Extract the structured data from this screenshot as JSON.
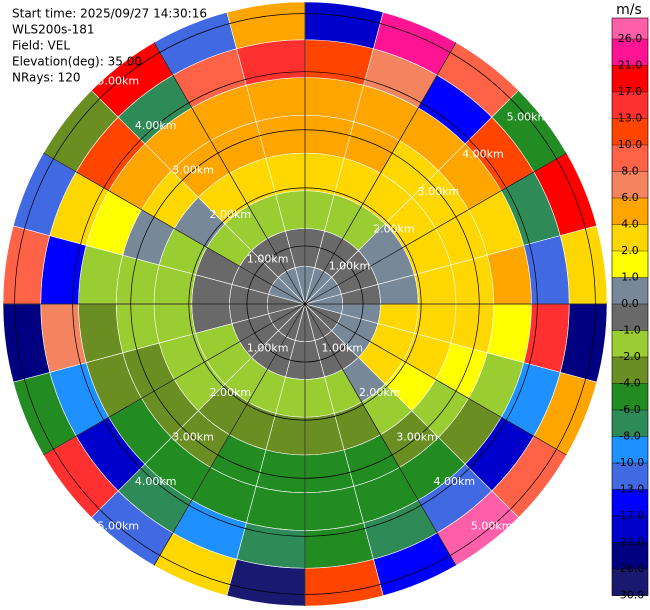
{
  "chart_data": {
    "type": "ppi",
    "info": [
      "Start time: 2025/09/27 14:30:16",
      "WLS200s-181",
      "Field: VEL",
      "Elevation(deg): 35.00",
      "NRays: 120"
    ],
    "rlim": [
      0,
      5.2
    ],
    "range_rings": [
      {
        "value": 1,
        "label": "1.00km"
      },
      {
        "value": 2,
        "label": "2.00km"
      },
      {
        "value": 3,
        "label": "3.00km"
      },
      {
        "value": 4,
        "label": "4.00km"
      },
      {
        "value": 5,
        "label": "5.00km"
      }
    ],
    "field": [
      [
        0.5,
        -0.5,
        -1.5,
        3,
        5,
        5,
        12,
        -20
      ],
      [
        0.5,
        -0.5,
        -1.5,
        3,
        5,
        5,
        7,
        24
      ],
      [
        0.5,
        -0.5,
        -1.5,
        3,
        3,
        5,
        -15,
        9
      ],
      [
        0.5,
        -0.5,
        0.5,
        3,
        3,
        5,
        11,
        -5
      ],
      [
        0.5,
        -0.5,
        0.5,
        3,
        3,
        3,
        -7,
        18
      ],
      [
        0.5,
        -0.5,
        0.5,
        3,
        3,
        5,
        -11,
        3
      ],
      [
        0.5,
        0.5,
        3,
        3,
        3,
        1.5,
        14,
        -23
      ],
      [
        -0.5,
        0.5,
        3,
        3,
        1.5,
        -1.5,
        -9,
        5
      ],
      [
        -0.5,
        0.5,
        3,
        1.5,
        -1.5,
        -3,
        -18,
        9
      ],
      [
        -0.5,
        -0.5,
        0.5,
        -1.5,
        -3,
        -5,
        -12,
        27
      ],
      [
        -0.5,
        -0.5,
        -1.5,
        -3,
        -5,
        -5,
        -7,
        -15
      ],
      [
        -0.5,
        -0.5,
        -1.5,
        -3,
        -5,
        -5,
        -5,
        11
      ],
      [
        -0.5,
        -0.5,
        -1.5,
        -3,
        -5,
        -5,
        -7,
        -28
      ],
      [
        -0.5,
        -0.5,
        -1.5,
        -3,
        -5,
        -5,
        -9,
        3
      ],
      [
        -0.5,
        -0.5,
        -1.5,
        -3,
        -3,
        -5,
        -7,
        -11
      ],
      [
        -0.5,
        -0.5,
        -1.5,
        -1.5,
        -3,
        -5,
        -19,
        15
      ],
      [
        -0.5,
        -0.5,
        -1.5,
        -1.5,
        -3,
        -3,
        -9,
        -5
      ],
      [
        -0.5,
        -0.5,
        -0.5,
        -1.5,
        -1.5,
        -3,
        7,
        -23
      ],
      [
        -0.5,
        -0.5,
        -0.5,
        -1.5,
        -1.5,
        -1.5,
        -15,
        9
      ],
      [
        0.5,
        -0.5,
        -0.5,
        -1.5,
        0.5,
        1.5,
        3,
        -11
      ],
      [
        0.5,
        -0.5,
        -1.5,
        0.5,
        3,
        5,
        11,
        -3
      ],
      [
        0.5,
        -0.5,
        -1.5,
        3,
        5,
        5,
        -7,
        19
      ],
      [
        0.5,
        -0.5,
        -1.5,
        3,
        5,
        5,
        9,
        -13
      ],
      [
        0.5,
        -0.5,
        -1.5,
        3,
        5,
        5,
        15,
        5
      ]
    ],
    "colorbar": {
      "label": "m/s",
      "ticks": [
        {
          "value": 26,
          "label": "26.0"
        },
        {
          "value": 21,
          "label": "21.0"
        },
        {
          "value": 17,
          "label": "17.0"
        },
        {
          "value": 13,
          "label": "13.0"
        },
        {
          "value": 10,
          "label": "10.0"
        },
        {
          "value": 8,
          "label": "8.0"
        },
        {
          "value": 6,
          "label": "6.0"
        },
        {
          "value": 4,
          "label": "4.0"
        },
        {
          "value": 2,
          "label": "2.0"
        },
        {
          "value": 1,
          "label": "1.0"
        },
        {
          "value": 0,
          "label": "0.0"
        },
        {
          "value": -1,
          "label": "-1.0"
        },
        {
          "value": -2,
          "label": "-2.0"
        },
        {
          "value": -4,
          "label": "-4.0"
        },
        {
          "value": -6,
          "label": "-6.0"
        },
        {
          "value": -8,
          "label": "-8.0"
        },
        {
          "value": -10,
          "label": "-10.0"
        },
        {
          "value": -13,
          "label": "-13.0"
        },
        {
          "value": -17,
          "label": "-17.0"
        },
        {
          "value": -21,
          "label": "-21.0"
        },
        {
          "value": -26,
          "label": "-26.0"
        },
        {
          "value": -30,
          "label": "-30.0"
        }
      ],
      "colors": [
        "#ff5fa8",
        "#ff1493",
        "#ff0000",
        "#ff3030",
        "#ff4500",
        "#ff6347",
        "#f4845f",
        "#ffa500",
        "#ffd700",
        "#ffff00",
        "#778899",
        "#696969",
        "#9acd32",
        "#6b8e23",
        "#228b22",
        "#2e8b57",
        "#1e90ff",
        "#4169e1",
        "#0000ff",
        "#0000cd",
        "#000080",
        "#191970"
      ]
    }
  }
}
